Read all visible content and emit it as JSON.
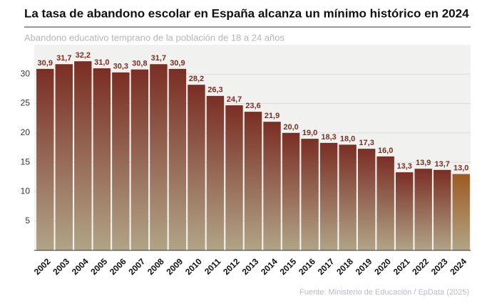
{
  "chart_data": {
    "type": "bar",
    "title": "La tasa de abandono escolar en España alcanza un mínimo histórico en 2024",
    "subtitle": "Abandono educativo temprano de la población de 18 a 24 años",
    "source": "Fuente: Ministerio de Educación / EpData (2025)",
    "categories": [
      "2002",
      "2003",
      "2004",
      "2005",
      "2006",
      "2007",
      "2008",
      "2009",
      "2010",
      "2011",
      "2012",
      "2013",
      "2014",
      "2015",
      "2016",
      "2017",
      "2018",
      "2019",
      "2020",
      "2021",
      "2022",
      "2023",
      "2024"
    ],
    "values": [
      30.9,
      31.7,
      32.2,
      31.0,
      30.3,
      30.8,
      31.7,
      30.9,
      28.2,
      26.3,
      24.7,
      23.6,
      21.9,
      20.0,
      19.0,
      18.3,
      18.0,
      17.3,
      16.0,
      13.3,
      13.9,
      13.7,
      13.0
    ],
    "value_labels": [
      "30,9",
      "31,7",
      "32,2",
      "31,0",
      "30,3",
      "30,8",
      "31,7",
      "30,9",
      "28,2",
      "26,3",
      "24,7",
      "23,6",
      "21,9",
      "20,0",
      "19,0",
      "18,3",
      "18,0",
      "17,3",
      "16,0",
      "13,3",
      "13,9",
      "13,7",
      "13,0"
    ],
    "colors": [
      "#7a2e24",
      "#7a2e24",
      "#7a2e24",
      "#7a2e24",
      "#7a2e24",
      "#7a2e24",
      "#7a2e24",
      "#7a2e24",
      "#7a2e24",
      "#7a2e24",
      "#7a2e24",
      "#7a2e24",
      "#7a2e24",
      "#7a2e24",
      "#7a2e24",
      "#7a2e24",
      "#7a2e24",
      "#7a2e24",
      "#7a2e24",
      "#7a2e24",
      "#7a2e24",
      "#7a2e24",
      "#9e5a22"
    ],
    "ylim": [
      0,
      35
    ],
    "yticks": [
      5,
      10,
      15,
      20,
      25,
      30
    ],
    "grid": true
  }
}
